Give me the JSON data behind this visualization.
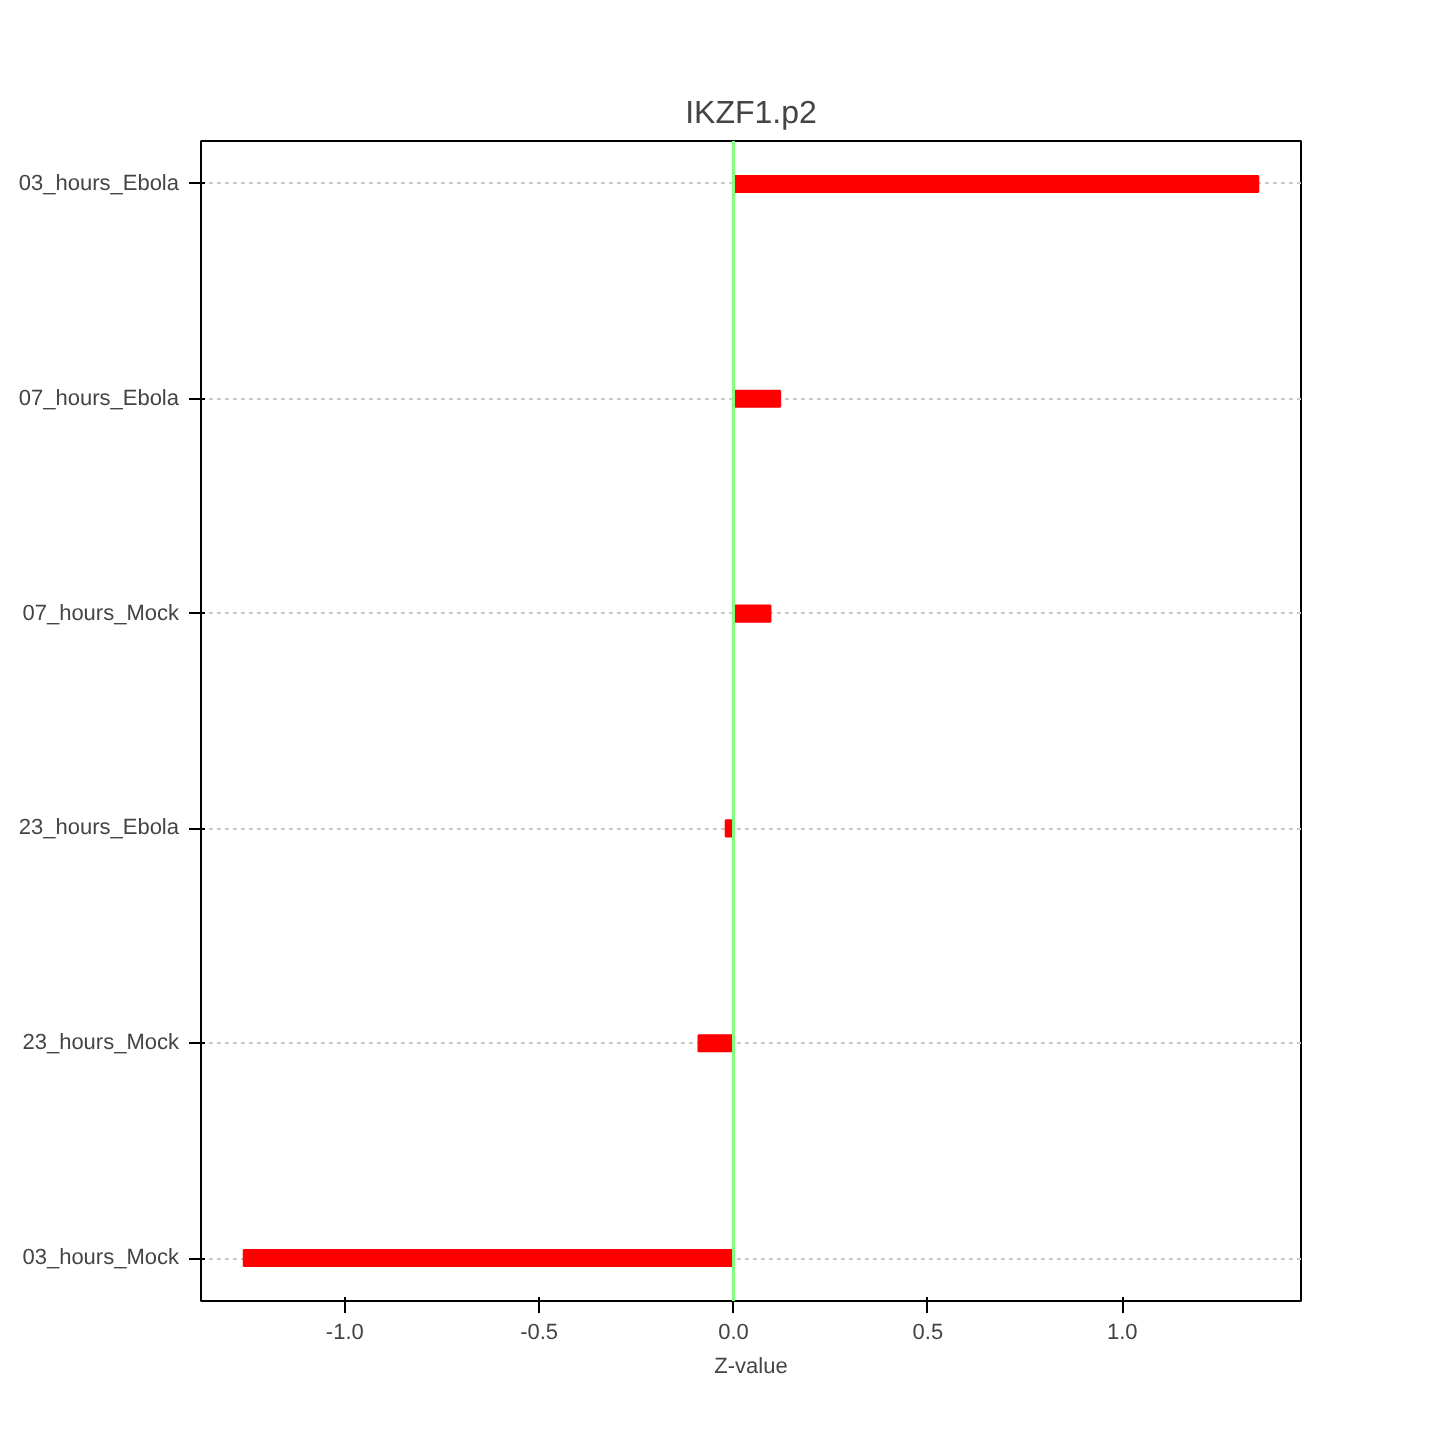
{
  "chart_data": {
    "type": "bar",
    "orientation": "horizontal",
    "title": "IKZF1.p2",
    "xlabel": "Z-value",
    "categories": [
      "03_hours_Ebola",
      "07_hours_Ebola",
      "07_hours_Mock",
      "23_hours_Ebola",
      "23_hours_Mock",
      "03_hours_Mock"
    ],
    "values": [
      1.35,
      0.12,
      0.095,
      -0.02,
      -0.09,
      -1.26
    ],
    "color": "#ff0000",
    "xlim": [
      -1.37,
      1.46
    ],
    "xticks": [
      {
        "value": -1,
        "label": "-1.0"
      },
      -0.5,
      {
        "value": 0,
        "label": "0.0"
      },
      0.5,
      {
        "value": 1,
        "label": "1.0"
      }
    ],
    "grid": "y",
    "ref_lines": [
      {
        "axis": "x",
        "value": 0,
        "color": "#80ff80"
      }
    ]
  }
}
